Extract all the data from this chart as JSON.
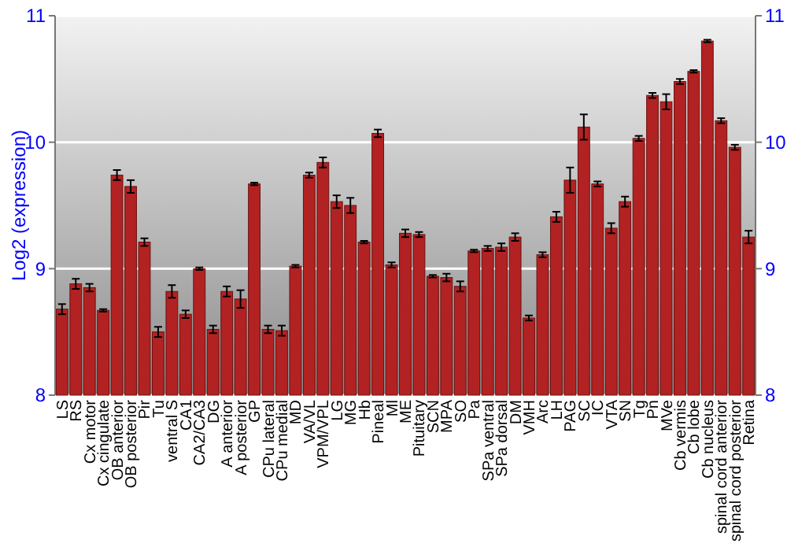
{
  "chart_data": {
    "type": "bar",
    "ylabel": "Log2 (expression)",
    "categories": [
      "LS",
      "RS",
      "Cx motor",
      "Cx cingulate",
      "OB anterior",
      "OB posterior",
      "Pir",
      "Tu",
      "ventral S",
      "CA1",
      "CA2/CA3",
      "DG",
      "A anterior",
      "A posterior",
      "GP",
      "CPu lateral",
      "CPu medial",
      "MD",
      "VA/VL",
      "VPM/VPL",
      "LG",
      "MG",
      "Hb",
      "Pineal",
      "Ml",
      "ME",
      "Pituitary",
      "SCN",
      "MPA",
      "SO",
      "Pa",
      "SPa ventral",
      "SPa dorsal",
      "DM",
      "VMH",
      "Arc",
      "LH",
      "PAG",
      "SC",
      "IC",
      "VTA",
      "SN",
      "Tg",
      "Pn",
      "MVe",
      "Cb vermis",
      "Cb lobe",
      "Cb nucleus",
      "spinal cord anterior",
      "spinal cord posterior",
      "Retina"
    ],
    "values": [
      8.68,
      8.88,
      8.85,
      8.67,
      9.74,
      9.65,
      9.21,
      8.5,
      8.82,
      8.64,
      9.0,
      8.52,
      8.82,
      8.76,
      9.67,
      8.52,
      8.51,
      9.02,
      9.74,
      9.84,
      9.53,
      9.5,
      9.21,
      10.07,
      9.03,
      9.28,
      9.27,
      8.94,
      8.93,
      8.86,
      9.14,
      9.16,
      9.17,
      9.25,
      8.61,
      9.11,
      9.41,
      9.7,
      10.12,
      9.67,
      9.32,
      9.53,
      10.03,
      10.37,
      10.32,
      10.48,
      10.56,
      10.8,
      10.17,
      9.96,
      9.25
    ],
    "errors": [
      0.04,
      0.04,
      0.03,
      0.01,
      0.04,
      0.05,
      0.03,
      0.04,
      0.05,
      0.03,
      0.01,
      0.03,
      0.04,
      0.07,
      0.01,
      0.03,
      0.04,
      0.01,
      0.02,
      0.04,
      0.05,
      0.06,
      0.01,
      0.03,
      0.02,
      0.03,
      0.02,
      0.01,
      0.03,
      0.04,
      0.01,
      0.02,
      0.03,
      0.03,
      0.02,
      0.02,
      0.04,
      0.1,
      0.1,
      0.02,
      0.04,
      0.04,
      0.02,
      0.02,
      0.06,
      0.02,
      0.01,
      0.01,
      0.02,
      0.02,
      0.05
    ],
    "color": "#b22222",
    "ylim": [
      8,
      11
    ],
    "yticks": [
      8,
      9,
      10,
      11
    ],
    "y2lim": [
      8,
      11
    ],
    "y2ticks": [
      8,
      9,
      10,
      11
    ],
    "grid": "y"
  }
}
